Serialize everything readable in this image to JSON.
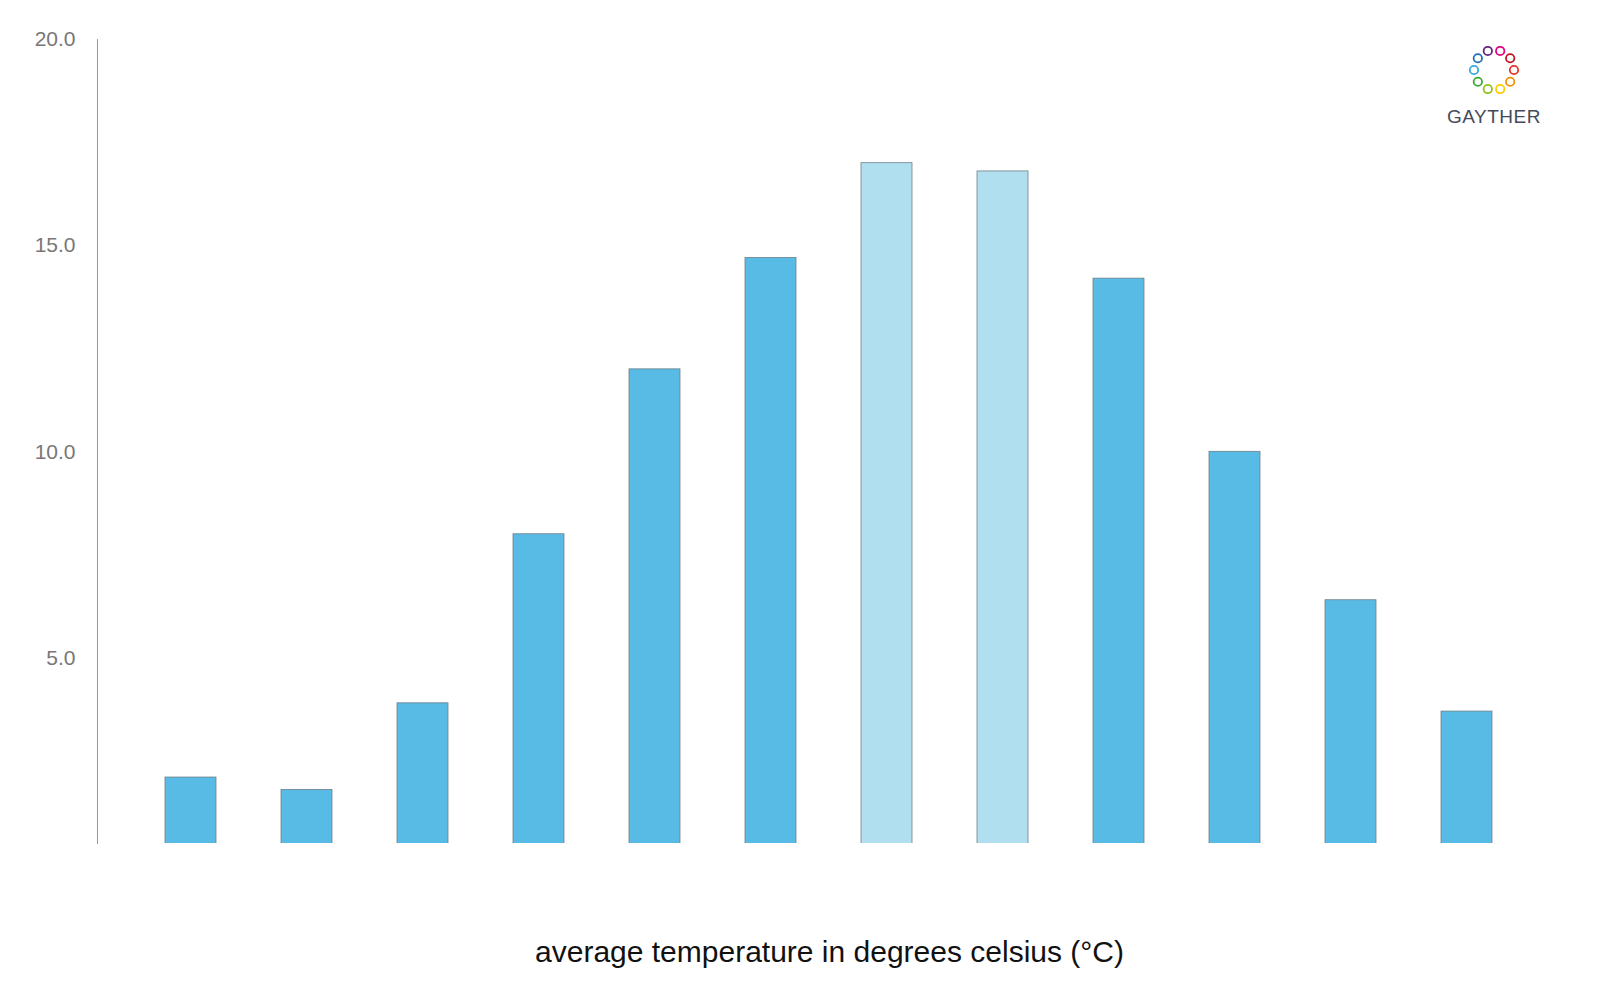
{
  "chart_data": {
    "type": "bar",
    "x_label": "average temperature in degrees celsius (°C)",
    "annotation": "GAYTHER",
    "categories": [
      null,
      null,
      null,
      null,
      null,
      null,
      null,
      null,
      null,
      null,
      null,
      null
    ],
    "values": [
      2.1,
      1.8,
      3.9,
      8.0,
      12.0,
      14.7,
      17.0,
      16.8,
      14.2,
      10.0,
      6.4,
      3.7
    ],
    "colors": [
      "#58bbe5",
      "#58bbe5",
      "#58bbe5",
      "#58bbe5",
      "#58bbe5",
      "#58bbe5",
      "#b0dff0",
      "#b0dff0",
      "#58bbe5",
      "#58bbe5",
      "#58bbe5",
      "#58bbe5"
    ],
    "ylim": [
      0.5,
      20
    ],
    "yticks": [
      {
        "value": 5,
        "label": "5.0"
      },
      {
        "value": 10,
        "label": "10.0"
      },
      {
        "value": 15,
        "label": "15.0"
      },
      {
        "value": 20,
        "label": "20.0"
      }
    ],
    "grid": false
  }
}
